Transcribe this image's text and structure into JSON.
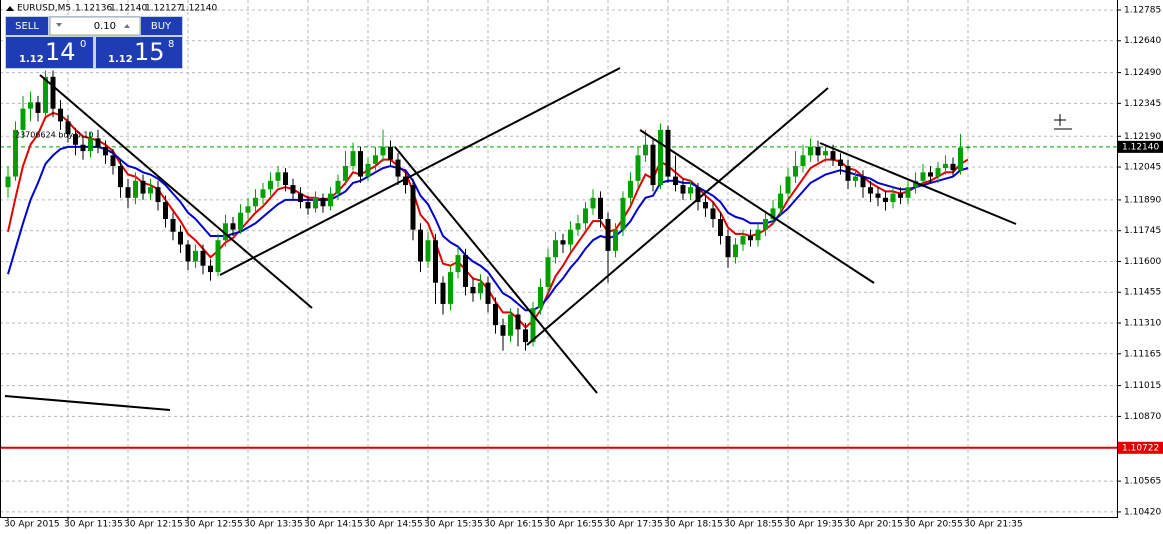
{
  "chart_data": {
    "type": "candlestick",
    "symbol": "EURUSD,M5",
    "ohlc_labels": [
      "1.12136",
      "1.12140",
      "1.12127",
      "1.12140"
    ],
    "order_annotation": "23706624 buy 0.10",
    "categories": [
      "30 Apr 2015",
      null,
      null,
      null,
      null,
      null,
      null,
      null,
      "30 Apr 11:35",
      null,
      null,
      null,
      null,
      null,
      null,
      null,
      "30 Apr 12:15",
      null,
      null,
      null,
      null,
      null,
      null,
      null,
      "30 Apr 12:55",
      null,
      null,
      null,
      null,
      null,
      null,
      null,
      "30 Apr 13:35",
      null,
      null,
      null,
      null,
      null,
      null,
      null,
      "30 Apr 14:15",
      null,
      null,
      null,
      null,
      null,
      null,
      null,
      "30 Apr 14:55",
      null,
      null,
      null,
      null,
      null,
      null,
      null,
      "30 Apr 15:35",
      null,
      null,
      null,
      null,
      null,
      null,
      null,
      "30 Apr 16:15",
      null,
      null,
      null,
      null,
      null,
      null,
      null,
      "30 Apr 16:55",
      null,
      null,
      null,
      null,
      null,
      null,
      null,
      "30 Apr 17:35",
      null,
      null,
      null,
      null,
      null,
      null,
      null,
      "30 Apr 18:15",
      null,
      null,
      null,
      null,
      null,
      null,
      null,
      "30 Apr 18:55",
      null,
      null,
      null,
      null,
      null,
      null,
      null,
      "30 Apr 19:35",
      null,
      null,
      null,
      null,
      null,
      null,
      null,
      "30 Apr 20:15",
      null,
      null,
      null,
      null,
      null,
      null,
      null,
      "30 Apr 20:55",
      null,
      null,
      null,
      null,
      null,
      null,
      null,
      "30 Apr 21:35"
    ],
    "open": [
      1.1195,
      1.12,
      1.1222,
      1.1232,
      1.1235,
      1.123,
      1.1247,
      1.1232,
      1.1226,
      1.122,
      1.1215,
      1.1212,
      1.1218,
      1.1214,
      1.121,
      1.1205,
      1.1195,
      1.119,
      1.1198,
      1.1192,
      1.1195,
      1.1188,
      1.118,
      1.1174,
      1.1168,
      1.116,
      1.1165,
      1.1158,
      1.1155,
      1.117,
      1.1178,
      1.1175,
      1.1183,
      1.1186,
      1.119,
      1.1194,
      1.1198,
      1.1202,
      1.1196,
      1.1192,
      1.1188,
      1.1185,
      1.119,
      1.1186,
      1.1192,
      1.1198,
      1.1205,
      1.1212,
      1.12,
      1.1206,
      1.121,
      1.1214,
      1.1208,
      1.12,
      1.1196,
      1.1175,
      1.116,
      1.117,
      1.115,
      1.114,
      1.1155,
      1.1163,
      1.1148,
      1.1145,
      1.115,
      1.114,
      1.113,
      1.1125,
      1.1135,
      1.1128,
      1.1122,
      1.1138,
      1.1148,
      1.1162,
      1.117,
      1.1168,
      1.1175,
      1.1178,
      1.1185,
      1.119,
      1.118,
      1.1165,
      1.1175,
      1.119,
      1.1198,
      1.121,
      1.1215,
      1.1196,
      1.1222,
      1.12,
      1.1196,
      1.1192,
      1.1195,
      1.1188,
      1.1185,
      1.118,
      1.1172,
      1.1162,
      1.1168,
      1.1172,
      1.117,
      1.1175,
      1.118,
      1.1185,
      1.1192,
      1.12,
      1.1205,
      1.121,
      1.1214,
      1.121,
      1.1212,
      1.1208,
      1.1205,
      1.1198,
      1.12,
      1.1195,
      1.1192,
      1.119,
      1.1188,
      1.1192,
      1.119,
      1.1195,
      1.1198,
      1.1202,
      1.12,
      1.1204,
      1.1206,
      1.1203,
      1.12136
    ],
    "high": [
      1.1205,
      1.1226,
      1.1238,
      1.124,
      1.1238,
      1.125,
      1.125,
      1.1236,
      1.1229,
      1.1223,
      1.1219,
      1.1221,
      1.1222,
      1.1217,
      1.1213,
      1.1208,
      1.1199,
      1.1202,
      1.1201,
      1.1199,
      1.1198,
      1.1191,
      1.1183,
      1.1177,
      1.117,
      1.1168,
      1.1168,
      1.1161,
      1.1173,
      1.1182,
      1.1181,
      1.1187,
      1.119,
      1.1194,
      1.1197,
      1.1202,
      1.1205,
      1.1204,
      1.1199,
      1.1195,
      1.1191,
      1.1193,
      1.1192,
      1.1195,
      1.1201,
      1.1212,
      1.1216,
      1.1214,
      1.1209,
      1.1214,
      1.1222,
      1.1217,
      1.1211,
      1.1203,
      1.1199,
      1.1178,
      1.1174,
      1.1173,
      1.1153,
      1.1158,
      1.1167,
      1.1166,
      1.1152,
      1.1154,
      1.1153,
      1.1143,
      1.1133,
      1.1138,
      1.1138,
      1.1131,
      1.1141,
      1.1152,
      1.1166,
      1.1174,
      1.1173,
      1.1179,
      1.1182,
      1.1188,
      1.1194,
      1.1193,
      1.1183,
      1.1178,
      1.1193,
      1.1202,
      1.1214,
      1.1222,
      1.1218,
      1.1225,
      1.1224,
      1.121,
      1.1199,
      1.1198,
      1.1197,
      1.1191,
      1.1188,
      1.1183,
      1.1175,
      1.1171,
      1.1175,
      1.1175,
      1.1178,
      1.1183,
      1.1189,
      1.1196,
      1.1204,
      1.1212,
      1.1215,
      1.1218,
      1.1217,
      1.1215,
      1.1215,
      1.1211,
      1.1208,
      1.1203,
      1.1203,
      1.1198,
      1.1195,
      1.1193,
      1.1195,
      1.1195,
      1.1198,
      1.1202,
      1.1206,
      1.1205,
      1.1207,
      1.121,
      1.1209,
      1.122,
      1.1214
    ],
    "low": [
      1.119,
      1.1198,
      1.1218,
      1.1226,
      1.1226,
      1.1228,
      1.1228,
      1.1222,
      1.1216,
      1.121,
      1.1208,
      1.1209,
      1.1211,
      1.1206,
      1.1201,
      1.119,
      1.1185,
      1.1187,
      1.1189,
      1.1189,
      1.1184,
      1.1176,
      1.117,
      1.1164,
      1.1156,
      1.1157,
      1.1154,
      1.1151,
      1.1153,
      1.1167,
      1.1172,
      1.1173,
      1.118,
      1.1183,
      1.1187,
      1.1191,
      1.1195,
      1.1193,
      1.1189,
      1.1185,
      1.1182,
      1.1183,
      1.1183,
      1.1184,
      1.1189,
      1.1196,
      1.1203,
      1.1197,
      1.1198,
      1.1203,
      1.1207,
      1.1205,
      1.1196,
      1.1192,
      1.117,
      1.1155,
      1.1157,
      1.114,
      1.1135,
      1.1137,
      1.1152,
      1.1144,
      1.1141,
      1.1142,
      1.1136,
      1.1126,
      1.1118,
      1.1122,
      1.112,
      1.1118,
      1.112,
      1.1135,
      1.1145,
      1.1159,
      1.1164,
      1.1165,
      1.1172,
      1.1175,
      1.1182,
      1.1176,
      1.115,
      1.1162,
      1.1172,
      1.1187,
      1.1195,
      1.1207,
      1.1193,
      1.1194,
      1.1197,
      1.1193,
      1.1189,
      1.1189,
      1.1184,
      1.1181,
      1.1176,
      1.1168,
      1.1157,
      1.1159,
      1.1165,
      1.1167,
      1.1167,
      1.1172,
      1.1177,
      1.1182,
      1.1189,
      1.1197,
      1.1202,
      1.1207,
      1.1207,
      1.1207,
      1.1205,
      1.1201,
      1.1194,
      1.1195,
      1.119,
      1.1188,
      1.1186,
      1.1184,
      1.1185,
      1.1187,
      1.1187,
      1.1192,
      1.1195,
      1.1197,
      1.1197,
      1.1201,
      1.12,
      1.1201,
      1.12127
    ],
    "close": [
      1.12,
      1.1222,
      1.1232,
      1.1235,
      1.123,
      1.1247,
      1.1232,
      1.1226,
      1.122,
      1.1215,
      1.1212,
      1.1218,
      1.1214,
      1.121,
      1.1205,
      1.1195,
      1.119,
      1.1198,
      1.1192,
      1.1195,
      1.1188,
      1.118,
      1.1174,
      1.1168,
      1.116,
      1.1165,
      1.1158,
      1.1155,
      1.117,
      1.1178,
      1.1175,
      1.1183,
      1.1186,
      1.119,
      1.1194,
      1.1198,
      1.1202,
      1.1196,
      1.1192,
      1.1188,
      1.1185,
      1.119,
      1.1186,
      1.1192,
      1.1198,
      1.1205,
      1.1212,
      1.12,
      1.1206,
      1.121,
      1.1214,
      1.1208,
      1.12,
      1.1196,
      1.1175,
      1.116,
      1.117,
      1.115,
      1.114,
      1.1155,
      1.1163,
      1.1148,
      1.1145,
      1.115,
      1.114,
      1.113,
      1.1125,
      1.1135,
      1.1128,
      1.1122,
      1.1138,
      1.1148,
      1.1162,
      1.117,
      1.1168,
      1.1175,
      1.1178,
      1.1185,
      1.119,
      1.118,
      1.1165,
      1.1175,
      1.119,
      1.1198,
      1.121,
      1.1215,
      1.1196,
      1.1222,
      1.12,
      1.1196,
      1.1192,
      1.1195,
      1.1188,
      1.1185,
      1.118,
      1.1172,
      1.1162,
      1.1168,
      1.1172,
      1.117,
      1.1175,
      1.118,
      1.1185,
      1.1192,
      1.12,
      1.1205,
      1.121,
      1.1214,
      1.121,
      1.1212,
      1.1208,
      1.1205,
      1.1198,
      1.12,
      1.1195,
      1.1192,
      1.119,
      1.1188,
      1.1192,
      1.119,
      1.1195,
      1.1198,
      1.1202,
      1.12,
      1.1204,
      1.1206,
      1.1203,
      1.12136,
      1.1214
    ],
    "up_color": "#00a000",
    "down_color": "#000000",
    "indicators": [
      {
        "color": "#e00000",
        "values": [
          1.1174,
          1.119,
          1.1205,
          1.1215,
          1.122,
          1.1228,
          1.123,
          1.1229,
          1.1226,
          1.1222,
          1.1219,
          1.1218,
          1.1217,
          1.1215,
          1.1212,
          1.1206,
          1.1201,
          1.12,
          1.1197,
          1.1196,
          1.1194,
          1.1189,
          1.1184,
          1.1179,
          1.1173,
          1.117,
          1.1166,
          1.1162,
          1.1165,
          1.1169,
          1.1171,
          1.1175,
          1.1179,
          1.1183,
          1.1186,
          1.119,
          1.1194,
          1.1195,
          1.1194,
          1.1192,
          1.119,
          1.119,
          1.1189,
          1.119,
          1.1193,
          1.1197,
          1.1202,
          1.1201,
          1.1203,
          1.1205,
          1.1208,
          1.1208,
          1.1205,
          1.1202,
          1.1193,
          1.1182,
          1.1178,
          1.1169,
          1.1159,
          1.1158,
          1.116,
          1.1156,
          1.1152,
          1.1151,
          1.1147,
          1.1141,
          1.1136,
          1.1136,
          1.1133,
          1.1129,
          1.1132,
          1.1137,
          1.1145,
          1.1153,
          1.1158,
          1.1164,
          1.1169,
          1.1174,
          1.1179,
          1.1179,
          1.1174,
          1.1175,
          1.118,
          1.1186,
          1.1194,
          1.1201,
          1.1199,
          1.1207,
          1.1205,
          1.1202,
          1.1199,
          1.1198,
          1.1195,
          1.1191,
          1.1188,
          1.1183,
          1.1176,
          1.1173,
          1.1173,
          1.1172,
          1.1173,
          1.1175,
          1.1178,
          1.1183,
          1.1189,
          1.1194,
          1.1199,
          1.1204,
          1.1206,
          1.1208,
          1.1208,
          1.1207,
          1.1204,
          1.1203,
          1.12,
          1.1197,
          1.1195,
          1.1193,
          1.1193,
          1.1192,
          1.1193,
          1.1195,
          1.1197,
          1.1198,
          1.12,
          1.1202,
          1.1202,
          1.1206,
          1.1208
        ]
      },
      {
        "color": "#0000d0",
        "values": [
          1.1154,
          1.1166,
          1.1178,
          1.1189,
          1.1197,
          1.1206,
          1.121,
          1.1213,
          1.1214,
          1.1214,
          1.1214,
          1.1214,
          1.1214,
          1.1213,
          1.1211,
          1.1208,
          1.1205,
          1.1204,
          1.1202,
          1.1201,
          1.1199,
          1.1196,
          1.1192,
          1.1188,
          1.1183,
          1.118,
          1.1176,
          1.1172,
          1.1172,
          1.1172,
          1.1173,
          1.1174,
          1.1176,
          1.1178,
          1.1181,
          1.1184,
          1.1187,
          1.1189,
          1.1189,
          1.1189,
          1.1189,
          1.1189,
          1.1189,
          1.1189,
          1.1191,
          1.1193,
          1.1197,
          1.1198,
          1.12,
          1.1202,
          1.1204,
          1.1205,
          1.1204,
          1.1203,
          1.1198,
          1.1191,
          1.1187,
          1.118,
          1.1172,
          1.1169,
          1.1167,
          1.1163,
          1.116,
          1.1158,
          1.1155,
          1.115,
          1.1145,
          1.1143,
          1.114,
          1.1137,
          1.1137,
          1.1139,
          1.1143,
          1.1148,
          1.1152,
          1.1157,
          1.1161,
          1.1166,
          1.117,
          1.1172,
          1.1171,
          1.1172,
          1.1175,
          1.1179,
          1.1185,
          1.119,
          1.1191,
          1.1197,
          1.1198,
          1.1198,
          1.1197,
          1.1197,
          1.1195,
          1.1193,
          1.1191,
          1.1188,
          1.1183,
          1.1181,
          1.118,
          1.1178,
          1.1178,
          1.1178,
          1.1179,
          1.1182,
          1.1185,
          1.1189,
          1.1193,
          1.1197,
          1.1199,
          1.1201,
          1.1202,
          1.1203,
          1.1202,
          1.1201,
          1.12,
          1.1199,
          1.1197,
          1.1196,
          1.1195,
          1.1194,
          1.1194,
          1.1195,
          1.1196,
          1.1197,
          1.1198,
          1.1199,
          1.12,
          1.1203,
          1.1204
        ]
      }
    ],
    "hlines": [
      {
        "value": 1.1214,
        "label": "1.12140",
        "color": "#00a000",
        "label_bg": "#000000",
        "dashed": true
      },
      {
        "value": 1.10722,
        "label": "1.10722",
        "color": "#e00000",
        "label_bg": "#e00000",
        "dashed": false
      }
    ],
    "ylim": [
      1.10396,
      1.12832
    ],
    "yticks": [
      1.12785,
      {
        "value": 1.1264,
        "label": "1.12640"
      },
      {
        "value": 1.1249,
        "label": "1.12490"
      },
      1.12345,
      {
        "value": 1.1219,
        "label": "1.12190"
      },
      1.12045,
      {
        "value": 1.1189,
        "label": "1.11890"
      },
      1.11745,
      {
        "value": 1.116,
        "label": "1.11600"
      },
      1.11455,
      {
        "value": 1.1131,
        "label": "1.11310"
      },
      1.11165,
      1.11015,
      {
        "value": 1.1087,
        "label": "1.10870"
      },
      1.10565,
      {
        "value": 1.1042,
        "label": "1.10420"
      }
    ],
    "grid": true
  },
  "trade_panel": {
    "sell": "SELL",
    "buy": "BUY",
    "lots": "0.10",
    "sell_price": {
      "prefix": "1.12",
      "main": "14",
      "sup": "0"
    },
    "buy_price": {
      "prefix": "1.12",
      "main": "15",
      "sup": "8"
    }
  }
}
